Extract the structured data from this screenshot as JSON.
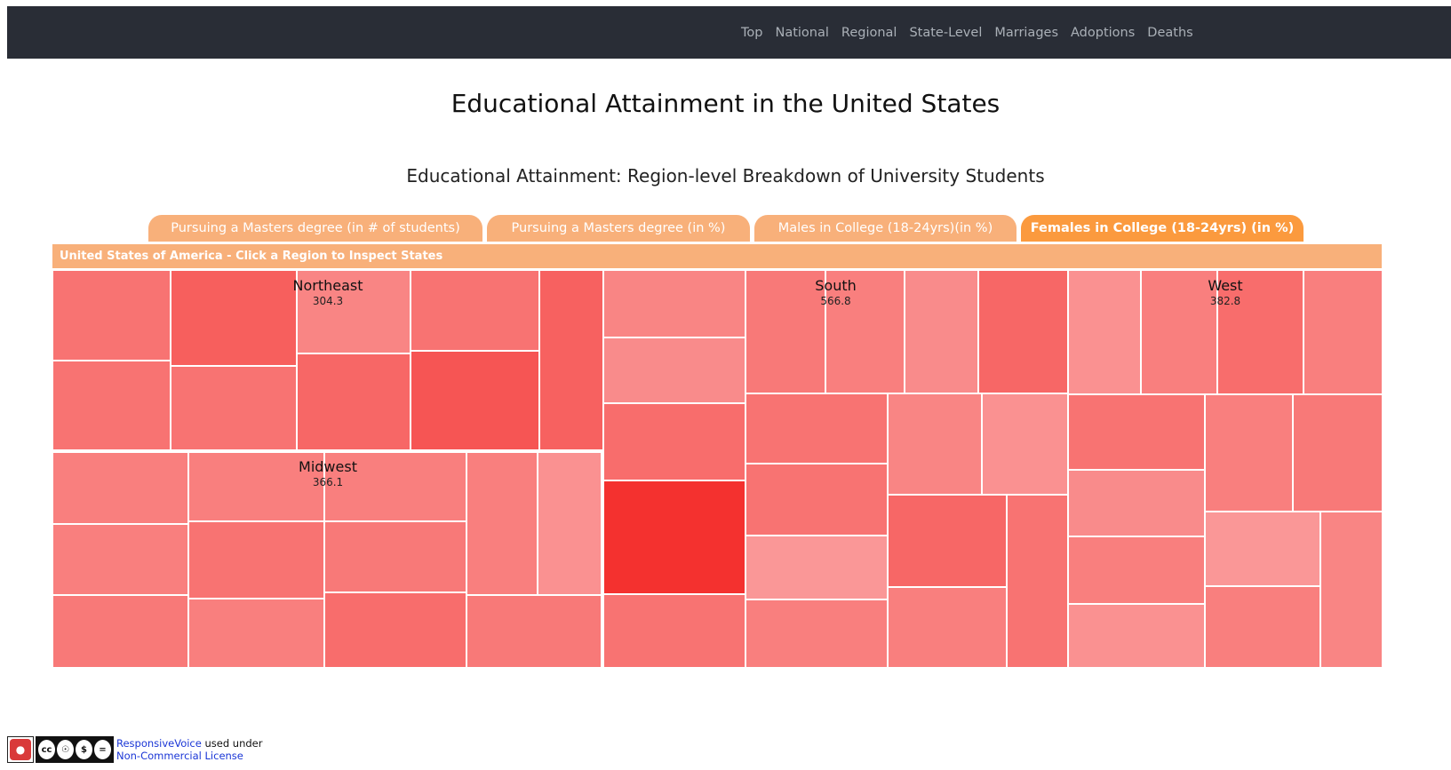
{
  "nav": {
    "links": [
      "Top",
      "National",
      "Regional",
      "State-Level",
      "Marriages",
      "Adoptions",
      "Deaths"
    ]
  },
  "page_title": "Educational Attainment in the United States",
  "section_title": "Educational Attainment: Region-level Breakdown of University Students",
  "tabs": [
    {
      "label": "Pursuing a Masters degree (in # of students)",
      "active": false
    },
    {
      "label": "Pursuing a Masters degree (in %)",
      "active": false
    },
    {
      "label": "Males in College (18-24yrs)(in %)",
      "active": false
    },
    {
      "label": "Females in College (18-24yrs) (in %)",
      "active": true
    }
  ],
  "treemap": {
    "header": "United States of America - Click a Region to Inspect States",
    "regions": [
      {
        "name": "Northeast",
        "value": "304.3"
      },
      {
        "name": "Midwest",
        "value": "366.1"
      },
      {
        "name": "South",
        "value": "566.8"
      },
      {
        "name": "West",
        "value": "382.8"
      }
    ]
  },
  "footer": {
    "link1": "ResponsiveVoice",
    "text": " used under",
    "link2": "Non-Commercial License",
    "cc_labels": [
      "BY",
      "NC",
      "ND"
    ]
  },
  "colors": {
    "navbar": "#292d36",
    "tab": "#f8b07a",
    "tab_active": "#fb9a3e",
    "cell_light": "#fba9a9",
    "cell_dark": "#f4312f"
  }
}
